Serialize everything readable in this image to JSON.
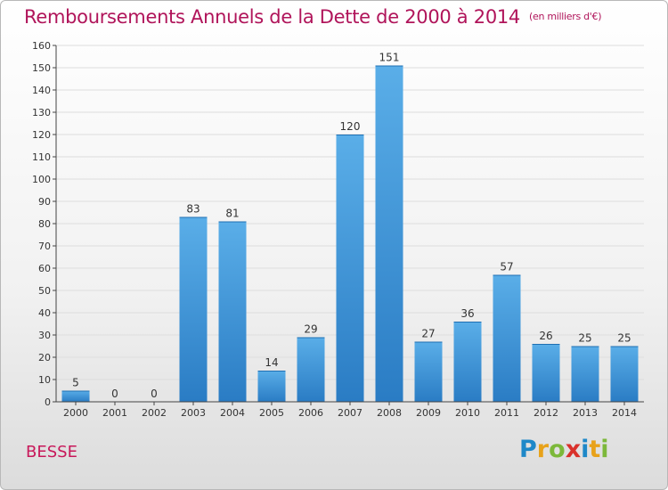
{
  "header": {
    "title": "Remboursements Annuels de la Dette de 2000 à 2014",
    "unit": "(en milliers d'€)"
  },
  "footer": {
    "commune": "BESSE",
    "logo": [
      {
        "ch": "P",
        "color": "#1e88c8"
      },
      {
        "ch": "r",
        "color": "#e8a21a"
      },
      {
        "ch": "o",
        "color": "#7cb83a"
      },
      {
        "ch": "x",
        "color": "#d9312b"
      },
      {
        "ch": "i",
        "color": "#1e88c8"
      },
      {
        "ch": "t",
        "color": "#e8a21a"
      },
      {
        "ch": "i",
        "color": "#7cb83a"
      }
    ]
  },
  "colors": {
    "title": "#b0145a",
    "bar_light": "#5aaee8",
    "bar_dark": "#2a7cc4",
    "grid": "#dddddd",
    "axis": "#444444"
  },
  "chart_data": {
    "type": "bar",
    "categories": [
      "2000",
      "2001",
      "2002",
      "2003",
      "2004",
      "2005",
      "2006",
      "2007",
      "2008",
      "2009",
      "2010",
      "2011",
      "2012",
      "2013",
      "2014"
    ],
    "values": [
      5,
      0,
      0,
      83,
      81,
      14,
      29,
      120,
      151,
      27,
      36,
      57,
      26,
      25,
      25
    ],
    "ylim": [
      0,
      160
    ],
    "yticks": [
      0,
      10,
      20,
      30,
      40,
      50,
      60,
      70,
      80,
      90,
      100,
      110,
      120,
      130,
      140,
      150,
      160
    ],
    "grid": true,
    "data_labels": true
  }
}
